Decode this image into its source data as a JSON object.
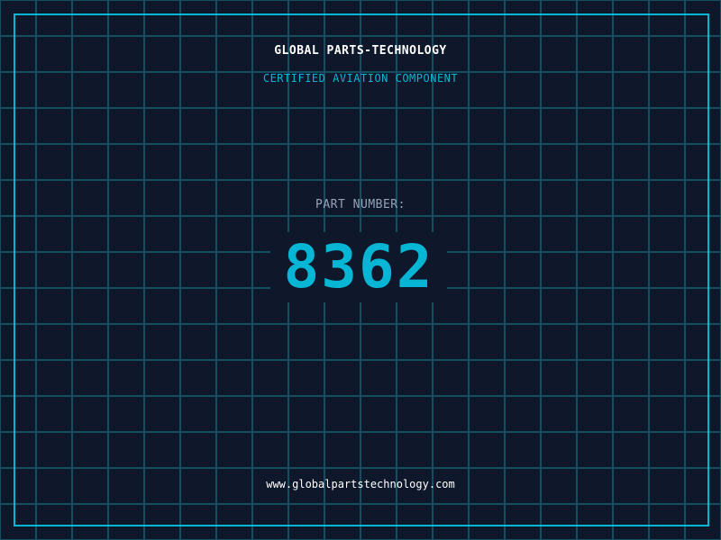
{
  "header": {
    "company": "GLOBAL PARTS-TECHNOLOGY",
    "subtitle": "CERTIFIED AVIATION COMPONENT"
  },
  "part": {
    "label": "PART NUMBER:",
    "number": "8362"
  },
  "footer": {
    "url": "www.globalpartstechnology.com"
  },
  "colors": {
    "background": "#0f172a",
    "accent": "#06b6d4",
    "grid": "#134e63",
    "label": "#94a3b8"
  }
}
